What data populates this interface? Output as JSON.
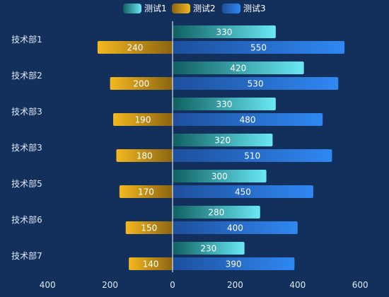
{
  "chart_data": {
    "type": "bar",
    "orientation": "horizontal",
    "categories": [
      "技术部1",
      "技术部2",
      "技术部3",
      "技术部3",
      "技术部5",
      "技术部6",
      "技术部7"
    ],
    "series": [
      {
        "name": "测试1",
        "values": [
          330,
          420,
          330,
          320,
          300,
          280,
          230
        ],
        "direction": "right",
        "colors": [
          "#0f5f60",
          "#6ae8f4"
        ]
      },
      {
        "name": "测试2",
        "values": [
          240,
          200,
          190,
          180,
          170,
          150,
          140
        ],
        "direction": "left",
        "colors": [
          "#8a6412",
          "#f4b81f"
        ]
      },
      {
        "name": "测试3",
        "values": [
          550,
          530,
          480,
          510,
          450,
          400,
          390
        ],
        "direction": "right",
        "colors": [
          "#1e4f9c",
          "#2f88f2"
        ]
      }
    ],
    "xticks": [
      "400",
      "200",
      "0",
      "200",
      "400",
      "600"
    ],
    "xlim": [
      -400,
      600
    ],
    "legend_position": "top-center",
    "grid": false
  }
}
